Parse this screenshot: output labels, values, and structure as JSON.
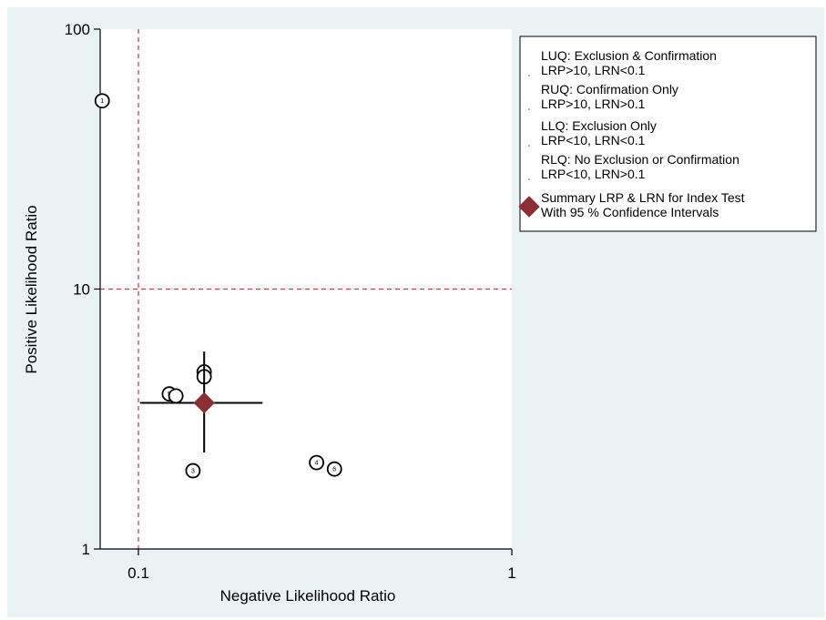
{
  "chart_data": {
    "type": "scatter",
    "xlabel": "Negative Likelihood Ratio",
    "ylabel": "Positive Likelihood Ratio",
    "x_scale": "log",
    "y_scale": "log",
    "xlim": [
      0.079,
      1
    ],
    "ylim": [
      1,
      100
    ],
    "x_ticks": [
      {
        "value": 0.1,
        "label": "0.1"
      },
      {
        "value": 1,
        "label": "1"
      }
    ],
    "y_ticks": [
      {
        "value": 1,
        "label": "1"
      },
      {
        "value": 10,
        "label": "10"
      },
      {
        "value": 100,
        "label": "100"
      }
    ],
    "reference_lines": {
      "x": 0.1,
      "y": 10,
      "color": "#c8364a"
    },
    "studies": [
      {
        "label": "1",
        "x": 0.08,
        "y": 53
      },
      {
        "label": "2",
        "x": 0.15,
        "y": 4.8
      },
      {
        "label": "",
        "x": 0.15,
        "y": 4.6
      },
      {
        "label": "3",
        "x": 0.14,
        "y": 2.0
      },
      {
        "label": "4",
        "x": 0.3,
        "y": 2.15
      },
      {
        "label": "5",
        "x": 0.121,
        "y": 3.95
      },
      {
        "label": "",
        "x": 0.126,
        "y": 3.88
      },
      {
        "label": "6",
        "x": 0.335,
        "y": 2.03
      }
    ],
    "summary": {
      "x": 0.15,
      "y": 3.65,
      "x_ci": [
        0.101,
        0.215
      ],
      "y_ci": [
        2.35,
        5.75
      ],
      "color": "#8b2e35"
    },
    "legend": {
      "position": "top-right",
      "entries": [
        {
          "lines": [
            "LUQ: Exclusion & Confirmation",
            "LRP>10, LRN<0.1"
          ]
        },
        {
          "lines": [
            "RUQ: Confirmation Only",
            "LRP>10, LRN>0.1"
          ]
        },
        {
          "lines": [
            "LLQ: Exclusion Only",
            "LRP<10, LRN<0.1"
          ]
        },
        {
          "lines": [
            "RLQ: No Exclusion or Confirmation",
            "LRP<10, LRN>0.1"
          ]
        },
        {
          "lines": [
            "Summary LRP & LRN for Index Test",
            "With 95 % Confidence Intervals"
          ],
          "marker": "diamond"
        }
      ]
    }
  }
}
